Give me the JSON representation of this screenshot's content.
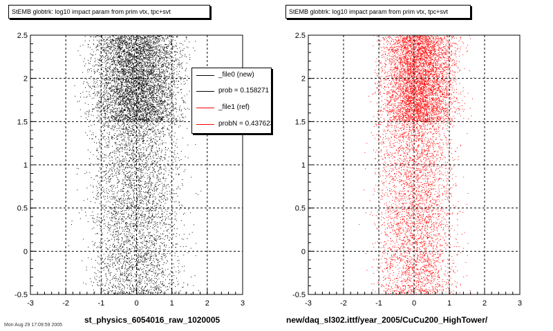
{
  "footer": "Mon Aug 29 17:09:59 2005",
  "chart_data": [
    {
      "type": "scatter",
      "title": "StEMB globtrk: log10 impact param from prim vtx, tpc+svt",
      "xlabel": "st_physics_6054016_raw_1020005",
      "ylabel": "",
      "xlim": [
        -3,
        3
      ],
      "ylim": [
        -0.5,
        2.5
      ],
      "xticks": [
        "-3",
        "-2",
        "-1",
        "0",
        "1",
        "2",
        "3"
      ],
      "yticks": [
        "-0.5",
        "0",
        "0.5",
        "1",
        "1.5",
        "2",
        "2.5"
      ],
      "grid": true,
      "point_color": "#000000",
      "dense_band": {
        "x": [
          -2.0,
          2.0
        ],
        "y": [
          1.5,
          2.5
        ]
      },
      "sparse_band": {
        "x": [
          -2.0,
          2.0
        ],
        "y": [
          -0.5,
          1.5
        ]
      },
      "legend": {
        "placement": "top-right",
        "entries": [
          {
            "label": "_file0 (new)",
            "color": "#000000"
          },
          {
            "label": "prob = 0.158271",
            "color": "#000000"
          },
          {
            "label": "_file1 (ref)",
            "color": "#ff0000"
          },
          {
            "label": "probN = 0.437623",
            "color": "#ff0000"
          }
        ]
      }
    },
    {
      "type": "scatter",
      "title": "StEMB globtrk: log10 impact param from prim vtx, tpc+svt",
      "xlabel": "new/daq_sl302.ittf/year_2005/CuCu200_HighTower/",
      "ylabel": "",
      "xlim": [
        -3,
        3
      ],
      "ylim": [
        -0.5,
        2.5
      ],
      "xticks": [
        "-3",
        "-2",
        "-1",
        "0",
        "1",
        "2",
        "3"
      ],
      "yticks": [
        "-0.5",
        "0",
        "0.5",
        "1",
        "1.5",
        "2",
        "2.5"
      ],
      "grid": true,
      "point_color": "#ff0000",
      "dense_band": {
        "x": [
          -1.5,
          1.8
        ],
        "y": [
          1.5,
          2.5
        ]
      },
      "sparse_band": {
        "x": [
          -1.7,
          1.8
        ],
        "y": [
          -0.5,
          1.5
        ]
      }
    }
  ]
}
